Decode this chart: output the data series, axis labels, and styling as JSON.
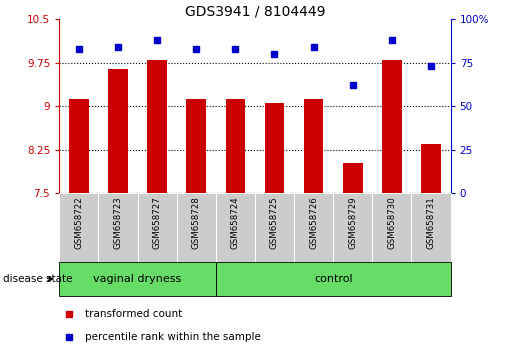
{
  "title": "GDS3941 / 8104449",
  "samples": [
    "GSM658722",
    "GSM658723",
    "GSM658727",
    "GSM658728",
    "GSM658724",
    "GSM658725",
    "GSM658726",
    "GSM658729",
    "GSM658730",
    "GSM658731"
  ],
  "red_values": [
    9.12,
    9.65,
    9.8,
    9.13,
    9.13,
    9.05,
    9.12,
    8.02,
    9.8,
    8.35
  ],
  "blue_values": [
    83,
    84,
    88,
    83,
    83,
    80,
    84,
    62,
    88,
    73
  ],
  "groups": [
    {
      "label": "vaginal dryness",
      "start": 0,
      "end": 4
    },
    {
      "label": "control",
      "start": 4,
      "end": 10
    }
  ],
  "ylim_left": [
    7.5,
    10.5
  ],
  "ylim_right": [
    0,
    100
  ],
  "yticks_left": [
    7.5,
    8.25,
    9.0,
    9.75,
    10.5
  ],
  "ytick_labels_left": [
    "7.5",
    "8.25",
    "9",
    "9.75",
    "10.5"
  ],
  "yticks_right": [
    0,
    25,
    50,
    75,
    100
  ],
  "ytick_labels_right": [
    "0",
    "25",
    "50",
    "75",
    "100%"
  ],
  "grid_values": [
    8.25,
    9.0,
    9.75
  ],
  "bar_color": "#cc0000",
  "dot_color": "#0000cc",
  "bar_width": 0.5,
  "disease_state_label": "disease state",
  "legend_red": "transformed count",
  "legend_blue": "percentile rank within the sample",
  "group_bg_color": "#66dd66",
  "tick_bg_color": "#cccccc"
}
